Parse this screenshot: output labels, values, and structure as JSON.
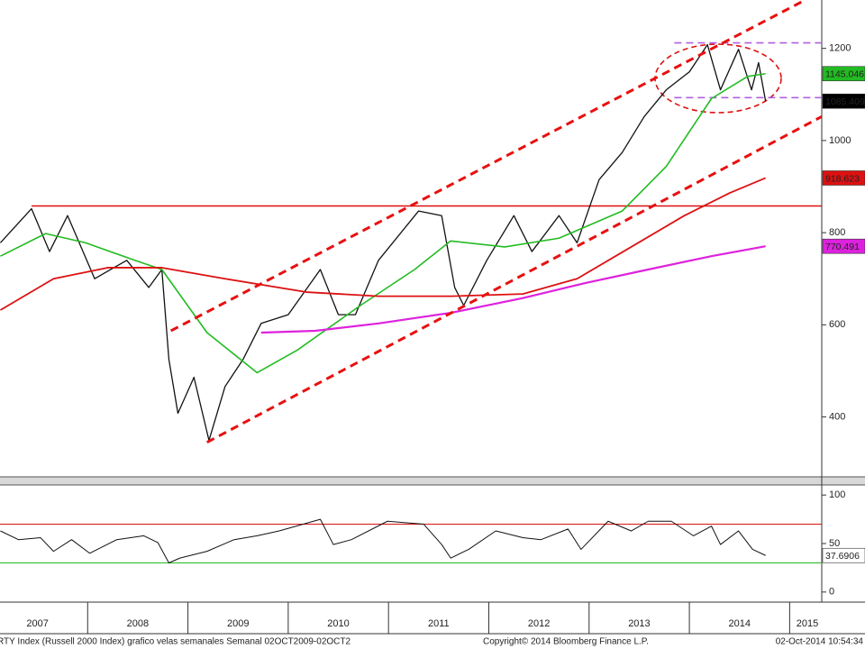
{
  "chart_data": [
    {
      "type": "line",
      "xlim": [
        2007.126,
        2015.32
      ],
      "ylim": [
        270,
        1305
      ],
      "yticks": [
        400,
        600,
        800,
        1000,
        1200
      ],
      "series": [
        {
          "color": "#111111",
          "width": 1.3,
          "x": [
            2007.13,
            2007.44,
            2007.62,
            2007.8,
            2008.07,
            2008.39,
            2008.61,
            2008.74,
            2008.81,
            2008.9,
            2009.06,
            2009.21,
            2009.37,
            2009.55,
            2009.73,
            2010.0,
            2010.32,
            2010.5,
            2010.67,
            2010.9,
            2011.3,
            2011.53,
            2011.66,
            2011.75,
            2011.98,
            2012.25,
            2012.43,
            2012.7,
            2012.88,
            2013.1,
            2013.33,
            2013.55,
            2013.77,
            2014.0,
            2014.18,
            2014.31,
            2014.49,
            2014.62,
            2014.69,
            2014.76
          ],
          "values": [
            778,
            852,
            759,
            837,
            700,
            740,
            681,
            720,
            525,
            408,
            486,
            349,
            466,
            525,
            603,
            622,
            720,
            622,
            622,
            740,
            847,
            837,
            681,
            642,
            740,
            837,
            759,
            837,
            778,
            915,
            974,
            1052,
            1110,
            1149,
            1208,
            1110,
            1198,
            1110,
            1169,
            1085.409
          ],
          "tag": {
            "fill": "#000000",
            "text": "#ffffff"
          }
        },
        {
          "color": "#22bb22",
          "width": 1.6,
          "x": [
            2007.13,
            2007.58,
            2007.98,
            2008.47,
            2008.74,
            2009.19,
            2009.69,
            2010.09,
            2010.72,
            2011.26,
            2011.62,
            2012.16,
            2012.7,
            2013.33,
            2013.77,
            2014.22,
            2014.58,
            2014.76
          ],
          "values": [
            749,
            798,
            778,
            740,
            720,
            583,
            496,
            545,
            642,
            720,
            782,
            769,
            788,
            847,
            944,
            1091,
            1139,
            1145.046
          ],
          "tag": {
            "fill": "#22bb22",
            "text": "#ffffff"
          }
        },
        {
          "color": "#dd1111",
          "width": 1.8,
          "x": [
            2007.13,
            2007.66,
            2008.2,
            2008.74,
            2009.37,
            2010.18,
            2010.9,
            2011.62,
            2012.34,
            2012.88,
            2013.42,
            2013.95,
            2014.4,
            2014.76
          ],
          "values": [
            632,
            700,
            724,
            724,
            700,
            671,
            662,
            662,
            667,
            700,
            769,
            837,
            886,
            918.623
          ],
          "tag": {
            "fill": "#dd1111",
            "text": "#ffffff"
          }
        },
        {
          "color": "#dd22dd",
          "width": 2.2,
          "x": [
            2009.73,
            2010.27,
            2010.9,
            2011.62,
            2012.34,
            2012.97,
            2013.59,
            2014.22,
            2014.76
          ],
          "values": [
            583,
            587,
            603,
            626,
            658,
            691,
            720,
            749,
            770.491
          ],
          "tag": {
            "fill": "#dd22dd",
            "text": "#ffffff"
          }
        },
        {
          "color": "#e81010",
          "width": 3,
          "dash": "9 6",
          "x": [
            2008.83,
            2015.12
          ],
          "values": [
            587,
            1301
          ]
        },
        {
          "color": "#e81010",
          "width": 3,
          "dash": "9 6",
          "x": [
            2009.19,
            2015.32
          ],
          "values": [
            345,
            1052
          ]
        }
      ],
      "hlines": [
        {
          "value": 858,
          "color": "#dd1111",
          "width": 1.5,
          "from": 2007.44
        },
        {
          "value": 1212,
          "color": "#b060e0",
          "width": 1.6,
          "dash": "8 5",
          "from": 2013.85
        },
        {
          "value": 1093,
          "color": "#b060e0",
          "width": 1.6,
          "dash": "8 5",
          "from": 2013.85
        }
      ]
    },
    {
      "type": "line",
      "xlim": [
        2007.126,
        2015.32
      ],
      "ylim": [
        -10.4,
        110.4
      ],
      "yticks": [
        0,
        50,
        100
      ],
      "xticks": [
        2007,
        2008,
        2009,
        2010,
        2011,
        2012,
        2013,
        2014,
        2015
      ],
      "series": [
        {
          "color": "#111111",
          "width": 1,
          "x": [
            2007.13,
            2007.31,
            2007.53,
            2007.66,
            2007.84,
            2008.02,
            2008.29,
            2008.56,
            2008.7,
            2008.81,
            2008.92,
            2009.19,
            2009.46,
            2009.69,
            2009.91,
            2010.32,
            2010.45,
            2010.63,
            2010.99,
            2011.35,
            2011.53,
            2011.62,
            2011.8,
            2012.07,
            2012.34,
            2012.52,
            2012.79,
            2012.92,
            2013.19,
            2013.42,
            2013.59,
            2013.82,
            2014.04,
            2014.22,
            2014.31,
            2014.49,
            2014.63,
            2014.76
          ],
          "values": [
            63,
            54,
            56,
            42,
            54,
            40,
            54,
            58,
            51,
            30,
            35,
            42,
            54,
            58,
            63,
            75,
            49,
            54,
            73,
            70,
            49,
            35,
            44,
            63,
            56,
            54,
            65,
            44,
            73,
            63,
            73,
            73,
            58,
            68,
            49,
            63,
            44,
            37.6906
          ],
          "tag": {
            "fill": "#ffffff",
            "text": "#000000"
          }
        }
      ],
      "hlines": [
        {
          "value": 70,
          "color": "#dd1111",
          "width": 1
        },
        {
          "value": 30,
          "color": "#22bb22",
          "width": 1
        }
      ]
    }
  ],
  "footer": {
    "left": "RTY Index (Russell 2000 Index) grafico velas semanales  Semanal 02OCT2009-02OCT2",
    "middle": "Copyright© 2014 Bloomberg Finance L.P.",
    "right": "02-Oct-2014 10:54:34"
  }
}
